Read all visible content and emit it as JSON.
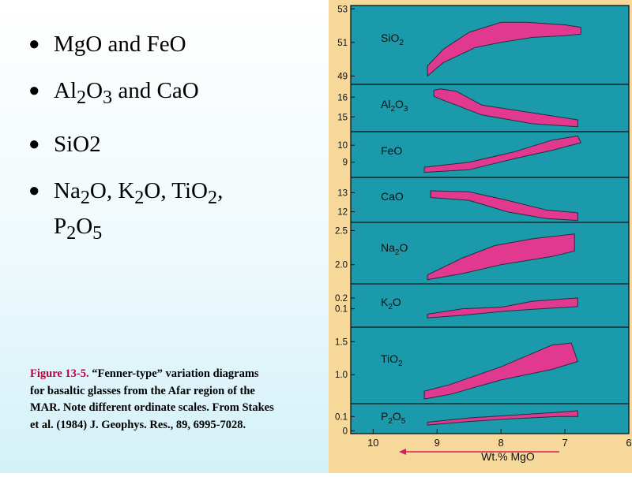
{
  "bullets": [
    {
      "main": "MgO and FeO"
    },
    {
      "pre": "Al",
      "s1": "2",
      "mid": "O",
      "s2": "3",
      "post": " and CaO"
    },
    {
      "main": "SiO2"
    },
    {
      "a": "Na",
      "a_sub": "2",
      "b": "O, K",
      "b_sub": "2",
      "c": "O, TiO",
      "c_sub": "2",
      "d": ",",
      "e": "P",
      "e_sub": "2",
      "f": "O",
      "f_sub": "5"
    }
  ],
  "caption": {
    "figure_label": "Figure 13-5.",
    "text": " “Fenner-type” variation diagrams for basaltic glasses from the Afar region of the MAR. Note different ordinate scales. From Stakes et al. (1984) J. Geophys. Res., 89, 6995-7028."
  },
  "colors": {
    "plot_bg": "#1b9aab",
    "field": "#e0398f",
    "frame": "#f6d99a"
  },
  "chart_data": {
    "type": "area",
    "xlabel": "Wt.% MgO",
    "x_axis_direction": "decreasing left-to-right",
    "x_ticks": [
      "10",
      "9",
      "8",
      "7",
      "6"
    ],
    "xlim": [
      10.35,
      6
    ],
    "panels": [
      {
        "label": {
          "base": "SiO",
          "sub": "2"
        },
        "yticks": [
          "53",
          "51",
          "49"
        ],
        "yrange": [
          48.5,
          53.2
        ],
        "field": {
          "upper": [
            [
              9.15,
              49.6
            ],
            [
              8.9,
              50.6
            ],
            [
              8.5,
              51.6
            ],
            [
              8.0,
              52.2
            ],
            [
              7.6,
              52.2
            ],
            [
              7.0,
              52.05
            ],
            [
              6.75,
              51.9
            ]
          ],
          "lower": [
            [
              6.75,
              51.5
            ],
            [
              7.0,
              51.4
            ],
            [
              7.5,
              51.3
            ],
            [
              8.0,
              51.0
            ],
            [
              8.4,
              50.7
            ],
            [
              8.9,
              49.8
            ],
            [
              9.15,
              49.0
            ]
          ]
        }
      },
      {
        "label": {
          "base": "Al",
          "sub": "2",
          "mid": "O",
          "sub2": "3"
        },
        "yticks": [
          "16",
          "15"
        ],
        "yrange": [
          14.25,
          16.65
        ],
        "field": {
          "upper": [
            [
              9.05,
              16.35
            ],
            [
              8.95,
              16.42
            ],
            [
              8.7,
              16.3
            ],
            [
              8.3,
              15.6
            ],
            [
              7.5,
              15.2
            ],
            [
              6.8,
              14.85
            ]
          ],
          "lower": [
            [
              6.8,
              14.5
            ],
            [
              7.5,
              14.65
            ],
            [
              8.3,
              15.1
            ],
            [
              8.7,
              15.6
            ],
            [
              8.95,
              15.9
            ],
            [
              9.05,
              16.05
            ]
          ]
        }
      },
      {
        "label": {
          "base": "FeO"
        },
        "yticks": [
          "10",
          "9"
        ],
        "yrange": [
          8.1,
          10.8
        ],
        "field": {
          "upper": [
            [
              9.2,
              8.7
            ],
            [
              8.5,
              9.0
            ],
            [
              7.8,
              9.6
            ],
            [
              7.2,
              10.3
            ],
            [
              6.8,
              10.55
            ]
          ],
          "lower": [
            [
              6.75,
              10.15
            ],
            [
              7.2,
              9.7
            ],
            [
              7.8,
              9.2
            ],
            [
              8.5,
              8.55
            ],
            [
              9.2,
              8.4
            ]
          ]
        }
      },
      {
        "label": {
          "base": "CaO"
        },
        "yticks": [
          "13",
          "12"
        ],
        "yrange": [
          11.45,
          13.8
        ],
        "field": {
          "upper": [
            [
              9.1,
              13.1
            ],
            [
              8.5,
              13.05
            ],
            [
              7.9,
              12.6
            ],
            [
              7.3,
              12.1
            ],
            [
              6.8,
              11.95
            ]
          ],
          "lower": [
            [
              6.8,
              11.55
            ],
            [
              7.3,
              11.65
            ],
            [
              7.9,
              12.0
            ],
            [
              8.5,
              12.6
            ],
            [
              9.1,
              12.75
            ]
          ]
        }
      },
      {
        "label": {
          "base": "Na",
          "sub": "2",
          "mid": "O"
        },
        "yticks": [
          "2.5",
          "2.0"
        ],
        "yrange": [
          1.72,
          2.62
        ],
        "field": {
          "upper": [
            [
              9.15,
              1.85
            ],
            [
              8.6,
              2.1
            ],
            [
              8.1,
              2.28
            ],
            [
              7.5,
              2.38
            ],
            [
              6.85,
              2.45
            ]
          ],
          "lower": [
            [
              6.85,
              2.2
            ],
            [
              7.2,
              2.12
            ],
            [
              8.0,
              2.0
            ],
            [
              8.6,
              1.87
            ],
            [
              9.15,
              1.78
            ]
          ]
        }
      },
      {
        "label": {
          "base": "K",
          "sub": "2",
          "mid": "O"
        },
        "yticks": [
          "0.2",
          "0.1"
        ],
        "yrange": [
          -0.07,
          0.33
        ],
        "field": {
          "upper": [
            [
              9.15,
              0.05
            ],
            [
              8.6,
              0.1
            ],
            [
              8.0,
              0.115
            ],
            [
              7.5,
              0.17
            ],
            [
              6.8,
              0.2
            ]
          ],
          "lower": [
            [
              6.8,
              0.12
            ],
            [
              7.5,
              0.095
            ],
            [
              8.0,
              0.075
            ],
            [
              8.6,
              0.04
            ],
            [
              9.15,
              0.015
            ]
          ]
        }
      },
      {
        "label": {
          "base": "TiO",
          "sub": "2"
        },
        "yticks": [
          "1.5",
          "1.0"
        ],
        "yrange": [
          0.56,
          1.72
        ],
        "field": {
          "upper": [
            [
              9.2,
              0.75
            ],
            [
              8.8,
              0.85
            ],
            [
              8.0,
              1.12
            ],
            [
              7.2,
              1.45
            ],
            [
              6.9,
              1.48
            ]
          ],
          "lower": [
            [
              6.8,
              1.2
            ],
            [
              7.2,
              1.08
            ],
            [
              8.0,
              0.92
            ],
            [
              8.8,
              0.7
            ],
            [
              9.2,
              0.63
            ]
          ]
        }
      },
      {
        "label": {
          "base": "P",
          "sub": "2",
          "mid": "O",
          "sub2": "5"
        },
        "yticks": [
          "0.1",
          "0"
        ],
        "yrange": [
          -0.02,
          0.19
        ],
        "field": {
          "upper": [
            [
              9.15,
              0.06
            ],
            [
              8.5,
              0.09
            ],
            [
              7.8,
              0.11
            ],
            [
              7.1,
              0.13
            ],
            [
              6.8,
              0.14
            ]
          ],
          "lower": [
            [
              6.8,
              0.1
            ],
            [
              7.1,
              0.1
            ],
            [
              7.8,
              0.085
            ],
            [
              8.5,
              0.065
            ],
            [
              9.15,
              0.04
            ]
          ]
        }
      }
    ]
  }
}
